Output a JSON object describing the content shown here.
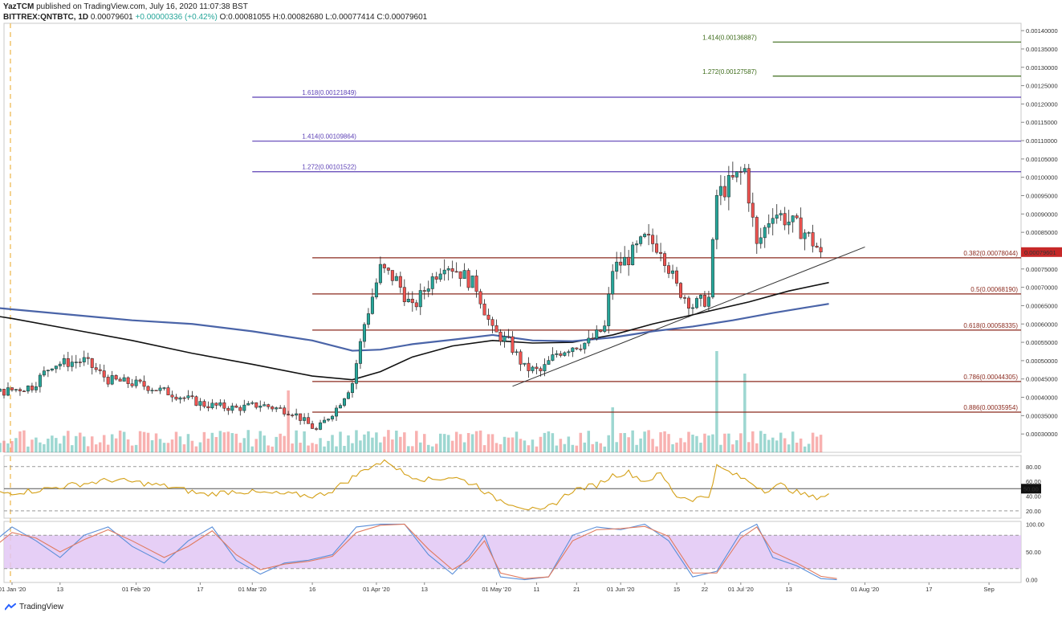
{
  "header": {
    "publisher": "YazTCM",
    "published_text": "published on TradingView.com, July 16, 2020 11:07:38 BST",
    "symbol": "BITTREX:QNTBTC, 1D",
    "last": "0.00079601",
    "change": "+0.00000336 (+0.42%)",
    "open": "O:0.00081055",
    "high": "H:0.00082680",
    "low": "L:0.00077414",
    "close": "C:0.00079601"
  },
  "footer": {
    "brand": "TradingView"
  },
  "colors": {
    "up": "#26a69a",
    "down": "#ef5350",
    "ema_black": "#111111",
    "ema_blue": "#4a64a8",
    "fib_retrace": "#8b2a1e",
    "fib_ext_purple": "#5b3fb5",
    "fib_ext_green": "#3d6b1a",
    "rsi": "#d4a017",
    "stoch_k": "#5b8fd9",
    "stoch_d": "#e07a5f",
    "stoch_band": "#e2c7f5",
    "price_tag": "#c62828"
  },
  "chart_data": [
    {
      "type": "candlestick",
      "title": "BITTREX:QNTBTC, 1D",
      "ylim": [
        0.00025,
        0.00142
      ],
      "y_ticks": [
        "0.00140000",
        "0.00135000",
        "0.00130000",
        "0.00125000",
        "0.00120000",
        "0.00115000",
        "0.00110000",
        "0.00105000",
        "0.00100000",
        "0.00095000",
        "0.00090000",
        "0.00085000",
        "0.00080000",
        "0.00075000",
        "0.00070000",
        "0.00065000",
        "0.00060000",
        "0.00055000",
        "0.00050000",
        "0.00045000",
        "0.00040000",
        "0.00035000",
        "0.00030000"
      ],
      "y_tick_values": [
        0.0014,
        0.00135,
        0.0013,
        0.00125,
        0.0012,
        0.00115,
        0.0011,
        0.00105,
        0.001,
        0.00095,
        0.0009,
        0.00085,
        0.0008,
        0.00075,
        0.0007,
        0.00065,
        0.0006,
        0.00055,
        0.0005,
        0.00045,
        0.0004,
        0.00035,
        0.0003
      ],
      "x_ticks": [
        "01 Jan '20",
        "13",
        "01 Feb '20",
        "17",
        "01 Mar '20",
        "16",
        "01 Apr '20",
        "13",
        "01 May '20",
        "11",
        "21",
        "01 Jun '20",
        "15",
        "22",
        "01 Jul '20",
        "13",
        "01 Aug '20",
        "17",
        "Sep"
      ],
      "x_tick_days": [
        0,
        12,
        31,
        47,
        60,
        75,
        91,
        103,
        121,
        131,
        141,
        152,
        166,
        173,
        182,
        194,
        213,
        229,
        244
      ],
      "x_range_days": [
        -2,
        252
      ],
      "current_price": {
        "value": 0.00079601,
        "label": "0.00079601"
      },
      "fib_retracement": [
        {
          "label": "0.382(0.00078044)",
          "value": 0.00078044
        },
        {
          "label": "0.5(0.00068190)",
          "value": 0.0006819
        },
        {
          "label": "0.618(0.00058335)",
          "value": 0.00058335
        },
        {
          "label": "0.786(0.00044305)",
          "value": 0.00044305
        },
        {
          "label": "0.886(0.00035954)",
          "value": 0.00035954
        }
      ],
      "fib_extension": [
        {
          "label": "1.272(0.00101522)",
          "value": 0.00101522
        },
        {
          "label": "1.414(0.00109864)",
          "value": 0.00109864
        },
        {
          "label": "1.618(0.00121849)",
          "value": 0.00121849
        }
      ],
      "fib_extension_green": [
        {
          "label": "1.272(0.00127587)",
          "value": 0.00127587
        },
        {
          "label": "1.414(0.00136887)",
          "value": 0.00136887
        }
      ],
      "trendline": {
        "start": [
          -15,
          0.00042
        ],
        "end": [
          175,
          0.00081
        ]
      },
      "ema_black": [
        [
          -42,
          0.00068
        ],
        [
          -30,
          0.000665
        ],
        [
          -15,
          0.00064
        ],
        [
          0,
          0.000615
        ],
        [
          15,
          0.000585
        ],
        [
          30,
          0.000555
        ],
        [
          45,
          0.00052
        ],
        [
          60,
          0.00049
        ],
        [
          75,
          0.000458
        ],
        [
          85,
          0.000448
        ],
        [
          92,
          0.00047
        ],
        [
          100,
          0.00051
        ],
        [
          110,
          0.00054
        ],
        [
          120,
          0.000555
        ],
        [
          130,
          0.000548
        ],
        [
          140,
          0.00055
        ],
        [
          150,
          0.00057
        ],
        [
          160,
          0.0006
        ],
        [
          168,
          0.00062
        ],
        [
          176,
          0.00064
        ],
        [
          184,
          0.00066
        ],
        [
          194,
          0.00069
        ],
        [
          204,
          0.000713
        ]
      ],
      "ema_blue": [
        [
          -42,
          0.00068
        ],
        [
          -30,
          0.00067
        ],
        [
          -15,
          0.000655
        ],
        [
          0,
          0.00064
        ],
        [
          15,
          0.000625
        ],
        [
          30,
          0.00061
        ],
        [
          45,
          0.0006
        ],
        [
          60,
          0.00058
        ],
        [
          75,
          0.000555
        ],
        [
          85,
          0.000527
        ],
        [
          92,
          0.00053
        ],
        [
          100,
          0.000545
        ],
        [
          110,
          0.000557
        ],
        [
          120,
          0.00057
        ],
        [
          130,
          0.000555
        ],
        [
          140,
          0.000553
        ],
        [
          150,
          0.000563
        ],
        [
          160,
          0.00058
        ],
        [
          170,
          0.000593
        ],
        [
          180,
          0.00061
        ],
        [
          190,
          0.00063
        ],
        [
          204,
          0.000655
        ]
      ],
      "ohlc_anchors": [
        [
          -40,
          0.00046
        ],
        [
          -30,
          0.0005
        ],
        [
          -18,
          0.000495
        ],
        [
          -12,
          0.00038
        ],
        [
          -5,
          0.00041
        ],
        [
          5,
          0.00043
        ],
        [
          10,
          0.00049
        ],
        [
          18,
          0.0005
        ],
        [
          24,
          0.000448
        ],
        [
          32,
          0.000435
        ],
        [
          40,
          0.00041
        ],
        [
          48,
          0.00038
        ],
        [
          56,
          0.00037
        ],
        [
          62,
          0.00038
        ],
        [
          70,
          0.00036
        ],
        [
          76,
          0.00031
        ],
        [
          81,
          0.00037
        ],
        [
          85,
          0.00044
        ],
        [
          88,
          0.0006
        ],
        [
          92,
          0.00075
        ],
        [
          96,
          0.00072
        ],
        [
          100,
          0.00064
        ],
        [
          104,
          0.00071
        ],
        [
          108,
          0.00077
        ],
        [
          112,
          0.00074
        ],
        [
          116,
          0.0007
        ],
        [
          120,
          0.00058
        ],
        [
          124,
          0.00055
        ],
        [
          128,
          0.00048
        ],
        [
          132,
          0.00047
        ],
        [
          136,
          0.00052
        ],
        [
          140,
          0.00054
        ],
        [
          144,
          0.00055
        ],
        [
          148,
          0.00059
        ],
        [
          150,
          0.00075
        ],
        [
          154,
          0.00078
        ],
        [
          158,
          0.00083
        ],
        [
          162,
          0.00081
        ],
        [
          166,
          0.0007
        ],
        [
          170,
          0.00065
        ],
        [
          174,
          0.00067
        ],
        [
          176,
          0.00095
        ],
        [
          180,
          0.00099
        ],
        [
          183,
          0.00102
        ],
        [
          186,
          0.00081
        ],
        [
          190,
          0.00091
        ],
        [
          194,
          0.00088
        ],
        [
          198,
          0.00085
        ],
        [
          202,
          0.00079601
        ]
      ],
      "volume_spikes": [
        [
          -5,
          1.0
        ],
        [
          69,
          0.55
        ],
        [
          150,
          0.4
        ],
        [
          176,
          0.9
        ],
        [
          183,
          0.7
        ]
      ],
      "label_mar": "Mar '20"
    },
    {
      "type": "line",
      "title": "RSI",
      "ylim": [
        10,
        95
      ],
      "y_ticks": [
        "80.00",
        "60.00",
        "40.00",
        "20.00"
      ],
      "y_tick_values": [
        80,
        60,
        40,
        20
      ],
      "midline": {
        "value": 50,
        "label": "50.00"
      },
      "bands": [
        80,
        20
      ],
      "anchors": [
        [
          -42,
          38
        ],
        [
          -35,
          52
        ],
        [
          -25,
          44
        ],
        [
          -15,
          48
        ],
        [
          -8,
          30
        ],
        [
          -3,
          44
        ],
        [
          5,
          47
        ],
        [
          15,
          55
        ],
        [
          25,
          62
        ],
        [
          32,
          58
        ],
        [
          40,
          52
        ],
        [
          48,
          42
        ],
        [
          56,
          47
        ],
        [
          62,
          44
        ],
        [
          70,
          42
        ],
        [
          76,
          40
        ],
        [
          80,
          48
        ],
        [
          85,
          65
        ],
        [
          90,
          82
        ],
        [
          94,
          87
        ],
        [
          98,
          70
        ],
        [
          104,
          62
        ],
        [
          110,
          66
        ],
        [
          116,
          55
        ],
        [
          120,
          38
        ],
        [
          126,
          28
        ],
        [
          132,
          18
        ],
        [
          136,
          32
        ],
        [
          140,
          48
        ],
        [
          146,
          55
        ],
        [
          150,
          68
        ],
        [
          154,
          72
        ],
        [
          158,
          60
        ],
        [
          162,
          70
        ],
        [
          166,
          40
        ],
        [
          170,
          36
        ],
        [
          174,
          40
        ],
        [
          176,
          80
        ],
        [
          180,
          70
        ],
        [
          184,
          60
        ],
        [
          188,
          48
        ],
        [
          192,
          55
        ],
        [
          196,
          45
        ],
        [
          200,
          38
        ],
        [
          204,
          42
        ]
      ]
    },
    {
      "type": "line",
      "title": "Stochastic RSI",
      "ylim": [
        -5,
        105
      ],
      "y_ticks": [
        "100.00",
        "50.00",
        "0.00"
      ],
      "y_tick_values": [
        100,
        50,
        0
      ],
      "bands": [
        80,
        20
      ],
      "anchors_k": [
        [
          -42,
          60
        ],
        [
          -36,
          90
        ],
        [
          -30,
          45
        ],
        [
          -24,
          70
        ],
        [
          -18,
          20
        ],
        [
          -12,
          15
        ],
        [
          -6,
          60
        ],
        [
          0,
          95
        ],
        [
          6,
          70
        ],
        [
          12,
          40
        ],
        [
          18,
          80
        ],
        [
          24,
          95
        ],
        [
          30,
          60
        ],
        [
          38,
          30
        ],
        [
          44,
          70
        ],
        [
          50,
          95
        ],
        [
          56,
          35
        ],
        [
          62,
          10
        ],
        [
          68,
          30
        ],
        [
          74,
          35
        ],
        [
          80,
          45
        ],
        [
          86,
          95
        ],
        [
          92,
          100
        ],
        [
          98,
          100
        ],
        [
          104,
          45
        ],
        [
          110,
          10
        ],
        [
          114,
          40
        ],
        [
          118,
          80
        ],
        [
          122,
          5
        ],
        [
          128,
          0
        ],
        [
          134,
          5
        ],
        [
          140,
          80
        ],
        [
          146,
          95
        ],
        [
          152,
          90
        ],
        [
          158,
          100
        ],
        [
          164,
          70
        ],
        [
          170,
          5
        ],
        [
          176,
          15
        ],
        [
          182,
          85
        ],
        [
          186,
          100
        ],
        [
          190,
          40
        ],
        [
          196,
          25
        ],
        [
          202,
          2
        ],
        [
          206,
          0
        ]
      ],
      "anchors_d": [
        [
          -42,
          55
        ],
        [
          -36,
          80
        ],
        [
          -30,
          55
        ],
        [
          -24,
          62
        ],
        [
          -18,
          30
        ],
        [
          -12,
          18
        ],
        [
          -6,
          50
        ],
        [
          0,
          85
        ],
        [
          6,
          75
        ],
        [
          12,
          50
        ],
        [
          18,
          72
        ],
        [
          24,
          90
        ],
        [
          30,
          70
        ],
        [
          38,
          40
        ],
        [
          44,
          60
        ],
        [
          50,
          88
        ],
        [
          56,
          45
        ],
        [
          62,
          18
        ],
        [
          68,
          28
        ],
        [
          74,
          33
        ],
        [
          80,
          42
        ],
        [
          86,
          85
        ],
        [
          92,
          98
        ],
        [
          98,
          100
        ],
        [
          104,
          55
        ],
        [
          110,
          18
        ],
        [
          114,
          35
        ],
        [
          118,
          70
        ],
        [
          122,
          12
        ],
        [
          128,
          2
        ],
        [
          134,
          5
        ],
        [
          140,
          70
        ],
        [
          146,
          90
        ],
        [
          152,
          92
        ],
        [
          158,
          96
        ],
        [
          164,
          78
        ],
        [
          170,
          12
        ],
        [
          176,
          12
        ],
        [
          182,
          75
        ],
        [
          186,
          95
        ],
        [
          190,
          50
        ],
        [
          196,
          30
        ],
        [
          202,
          6
        ],
        [
          206,
          2
        ]
      ]
    }
  ]
}
